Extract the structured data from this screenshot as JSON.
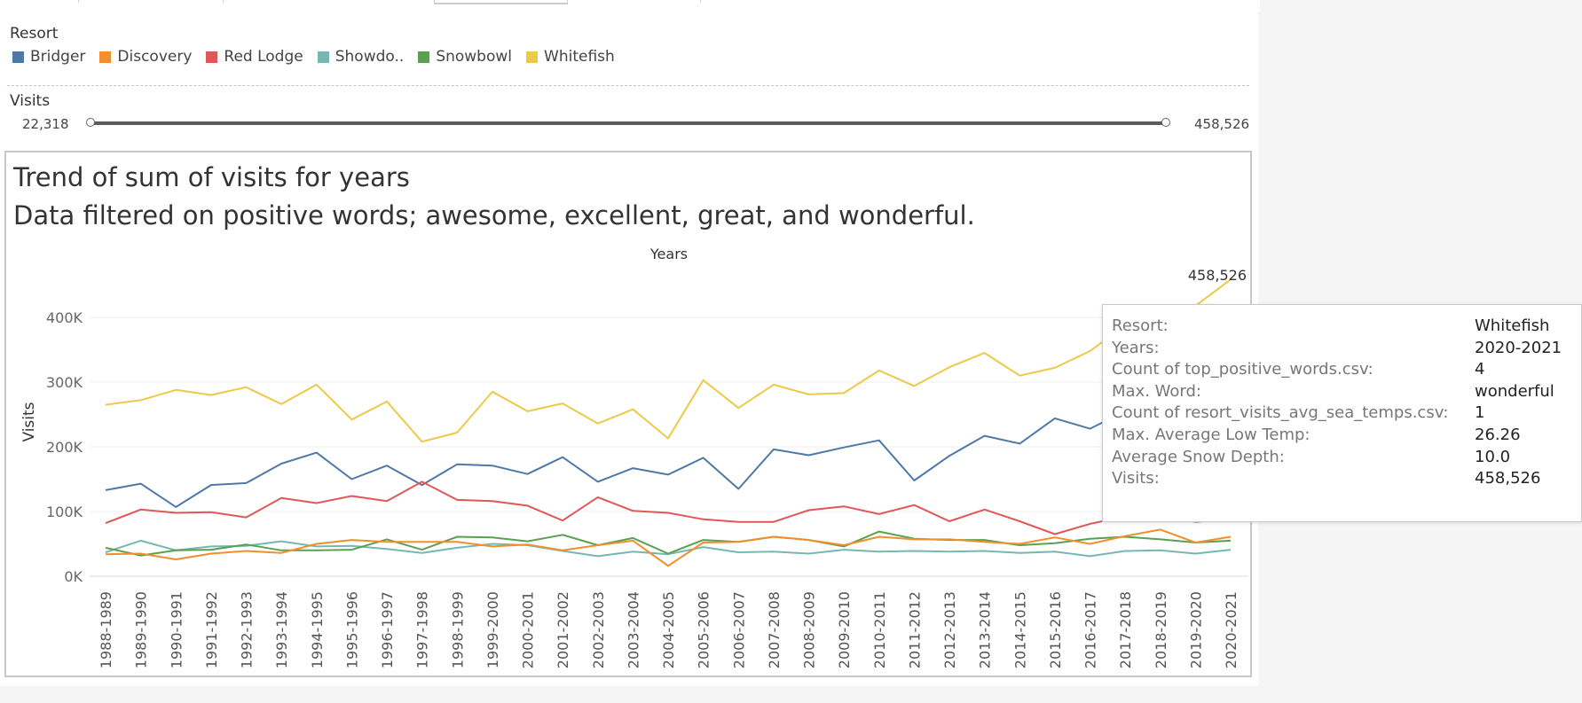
{
  "legend": {
    "title": "Resort",
    "items": [
      {
        "label": "Bridger",
        "color": "#4e79a7"
      },
      {
        "label": "Discovery",
        "color": "#f28e2b"
      },
      {
        "label": "Red Lodge",
        "color": "#e15759"
      },
      {
        "label": "Showdo..",
        "color": "#76b7b2"
      },
      {
        "label": "Snowbowl",
        "color": "#59a14f"
      },
      {
        "label": "Whitefish",
        "color": "#edc948"
      }
    ]
  },
  "filter": {
    "title": "Visits",
    "min_label": "22,318",
    "max_label": "458,526"
  },
  "chart_title": "Trend of sum of visits for years",
  "chart_subtitle": "Data filtered on positive words; awesome, excellent, great, and wonderful.",
  "chart_data": {
    "type": "line",
    "title": "Trend of sum of visits for years",
    "subtitle": "Data filtered on positive words; awesome, excellent, great, and wonderful.",
    "xlabel": "Years",
    "ylabel": "Visits",
    "ylim": [
      0,
      458526
    ],
    "yticks": [
      0,
      100000,
      200000,
      300000,
      400000
    ],
    "ytick_labels": [
      "0K",
      "100K",
      "200K",
      "300K",
      "400K"
    ],
    "grid": true,
    "legend_position": "top",
    "categories": [
      "1988-1989",
      "1989-1990",
      "1990-1991",
      "1991-1992",
      "1992-1993",
      "1993-1994",
      "1994-1995",
      "1995-1996",
      "1996-1997",
      "1997-1998",
      "1998-1999",
      "1999-2000",
      "2000-2001",
      "2001-2002",
      "2002-2003",
      "2003-2004",
      "2004-2005",
      "2005-2006",
      "2006-2007",
      "2007-2008",
      "2008-2009",
      "2009-2010",
      "2010-2011",
      "2011-2012",
      "2012-2013",
      "2013-2014",
      "2014-2015",
      "2015-2016",
      "2016-2017",
      "2017-2018",
      "2018-2019",
      "2019-2020",
      "2020-2021"
    ],
    "series": [
      {
        "name": "Whitefish",
        "color": "#edc948",
        "values": [
          265000,
          272000,
          288000,
          280000,
          292000,
          266000,
          296000,
          242000,
          270000,
          208000,
          222000,
          285000,
          255000,
          267000,
          236000,
          258000,
          213000,
          303000,
          260000,
          296000,
          281000,
          283000,
          318000,
          294000,
          323000,
          345000,
          310000,
          322000,
          348000,
          388000,
          372000,
          418000,
          458526
        ]
      },
      {
        "name": "Bridger",
        "color": "#4e79a7",
        "values": [
          133000,
          143000,
          107000,
          141000,
          144000,
          174000,
          191000,
          150000,
          171000,
          141000,
          173000,
          171000,
          158000,
          184000,
          146000,
          167000,
          157000,
          183000,
          135000,
          196000,
          187000,
          199000,
          210000,
          148000,
          186000,
          217000,
          205000,
          244000,
          228000,
          255000,
          242000,
          252000,
          262000
        ]
      },
      {
        "name": "Red Lodge",
        "color": "#e15759",
        "values": [
          82000,
          103000,
          98000,
          99000,
          91000,
          121000,
          113000,
          124000,
          116000,
          146000,
          118000,
          116000,
          109000,
          86000,
          122000,
          101000,
          98000,
          88000,
          84000,
          84000,
          102000,
          108000,
          96000,
          110000,
          85000,
          103000,
          85000,
          65000,
          81000,
          92000,
          94000,
          84000,
          89000
        ]
      },
      {
        "name": "Showdo..",
        "color": "#76b7b2",
        "values": [
          37000,
          55000,
          40000,
          46000,
          47000,
          54000,
          46000,
          47000,
          42000,
          36000,
          44000,
          50000,
          48000,
          39000,
          31000,
          38000,
          34000,
          45000,
          37000,
          38000,
          35000,
          41000,
          38000,
          39000,
          38000,
          39000,
          36000,
          38000,
          31000,
          39000,
          40000,
          35000,
          41000
        ]
      },
      {
        "name": "Snowbowl",
        "color": "#59a14f",
        "values": [
          44000,
          32000,
          40000,
          41000,
          49000,
          40000,
          40000,
          41000,
          57000,
          41000,
          61000,
          60000,
          54000,
          64000,
          48000,
          59000,
          35000,
          56000,
          53000,
          61000,
          56000,
          46000,
          69000,
          58000,
          56000,
          56000,
          48000,
          51000,
          58000,
          61000,
          57000,
          52000,
          55000
        ]
      },
      {
        "name": "Discovery",
        "color": "#f28e2b",
        "values": [
          34000,
          35000,
          26000,
          35000,
          39000,
          36000,
          50000,
          56000,
          53000,
          53000,
          53000,
          46000,
          49000,
          40000,
          48000,
          55000,
          16000,
          52000,
          53000,
          61000,
          56000,
          48000,
          61000,
          57000,
          57000,
          53000,
          50000,
          60000,
          50000,
          62000,
          72000,
          52000,
          61000
        ]
      }
    ],
    "annotations": [
      {
        "category": "2020-2021",
        "series": "Whitefish",
        "label": "458,526"
      }
    ]
  },
  "tooltip": {
    "rows": [
      {
        "key": "Resort:",
        "value": "Whitefish"
      },
      {
        "key": "Years:",
        "value": "2020-2021"
      },
      {
        "key": "Count of top_positive_words.csv:",
        "value": "4"
      },
      {
        "key": "Max. Word:",
        "value": "wonderful"
      },
      {
        "key": "Count of resort_visits_avg_sea_temps.csv:",
        "value": "1"
      },
      {
        "key": "Max. Average Low Temp:",
        "value": "26.26"
      },
      {
        "key": "Average Snow Depth:",
        "value": "10.0"
      },
      {
        "key": "Visits:",
        "value": "458,526"
      }
    ]
  }
}
